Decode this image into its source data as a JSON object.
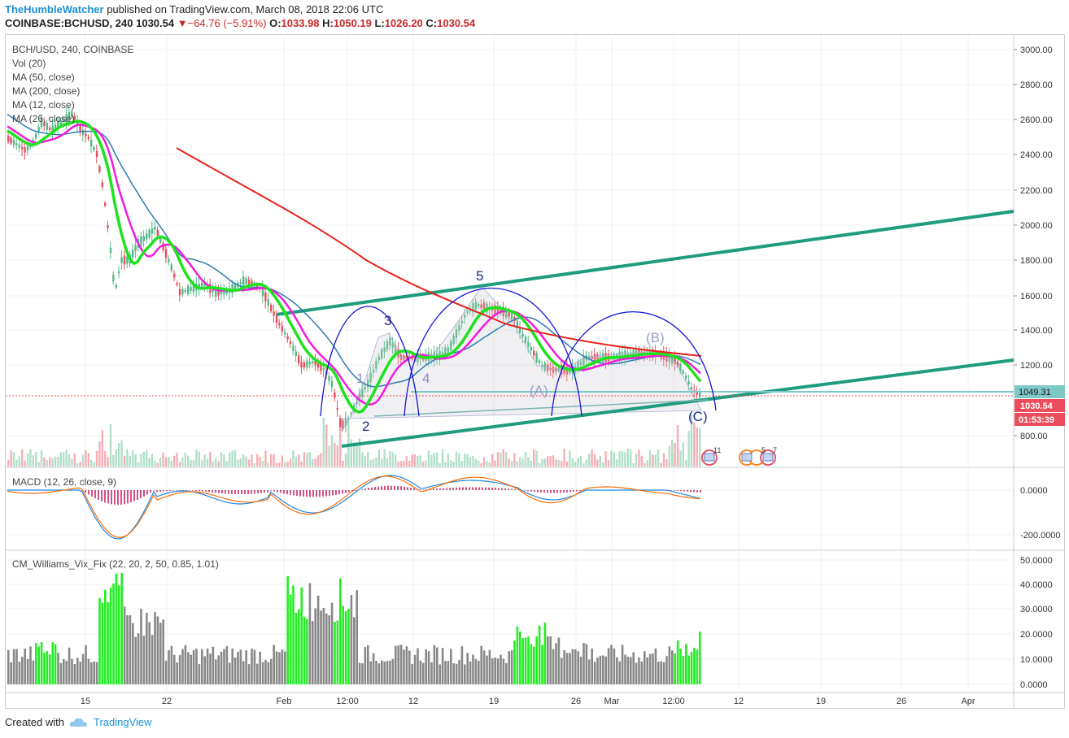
{
  "header": {
    "author": "TheHumbleWatcher",
    "published_text": " published on TradingView.com, March 08, 2018 22:06 UTC",
    "symbol": "COINBASE:BCHUSD, 240",
    "last": "1030.54",
    "change_arrow": "▼",
    "change": "−64.76 (−5.91%)",
    "o_label": "O:",
    "o": "1033.98",
    "h_label": "H:",
    "h": "1050.19",
    "l_label": "L:",
    "l": "1026.20",
    "c_label": "C:",
    "c": "1030.54"
  },
  "legend": {
    "title": "BCH/USD, 240, COINBASE",
    "items": [
      "Vol (20)",
      "MA (50, close)",
      "MA (200, close)",
      "MA (12, close)",
      "MA (26, close)"
    ]
  },
  "macd_legend": "MACD (12, 26, close, 9)",
  "vix_legend": "CM_Williams_Vix_Fix (22, 20, 2, 50, 0.85, 1.01)",
  "price_axis": [
    "3000.00",
    "2800.00",
    "2600.00",
    "2400.00",
    "2200.00",
    "2000.00",
    "1800.00",
    "1600.00",
    "1400.00",
    "1200.00",
    "800.00"
  ],
  "price_badges": {
    "level": "1049.31",
    "last": "1030.54",
    "timer": "01:53:39"
  },
  "macd_axis": [
    "0.0000",
    "-200.0000"
  ],
  "vix_axis": [
    "50.0000",
    "40.0000",
    "30.0000",
    "20.0000",
    "10.0000",
    "0.0000"
  ],
  "time_axis": [
    "15",
    "22",
    "Feb",
    "12:00",
    "12",
    "19",
    "26",
    "Mar",
    "12:00",
    "12",
    "19",
    "26",
    "Apr"
  ],
  "wave_labels": {
    "w1": "1",
    "w2": "2",
    "w3": "3",
    "w4": "4",
    "w5": "5",
    "wa": "(A)",
    "wb": "(B)",
    "wc": "(C)"
  },
  "event_labels": [
    "11",
    "5",
    "7"
  ],
  "colors": {
    "up": "#53b987",
    "down": "#eb4d5c",
    "ma50": "#2f7bb0",
    "ma200": "#e8231b",
    "ma12": "#1de21d",
    "ma26": "#f21bdc",
    "channel": "#1d9c7e",
    "arcs": "#1414d9",
    "macd": "#1e88e5",
    "signal": "#ff6d00",
    "hist": "#c2185b",
    "vix_green": "#22ee22",
    "vix_gray": "#888888"
  },
  "footer": {
    "created_with": "Created with",
    "brand": "TradingView",
    "cloud_icon": "tradingview-cloud-icon"
  }
}
